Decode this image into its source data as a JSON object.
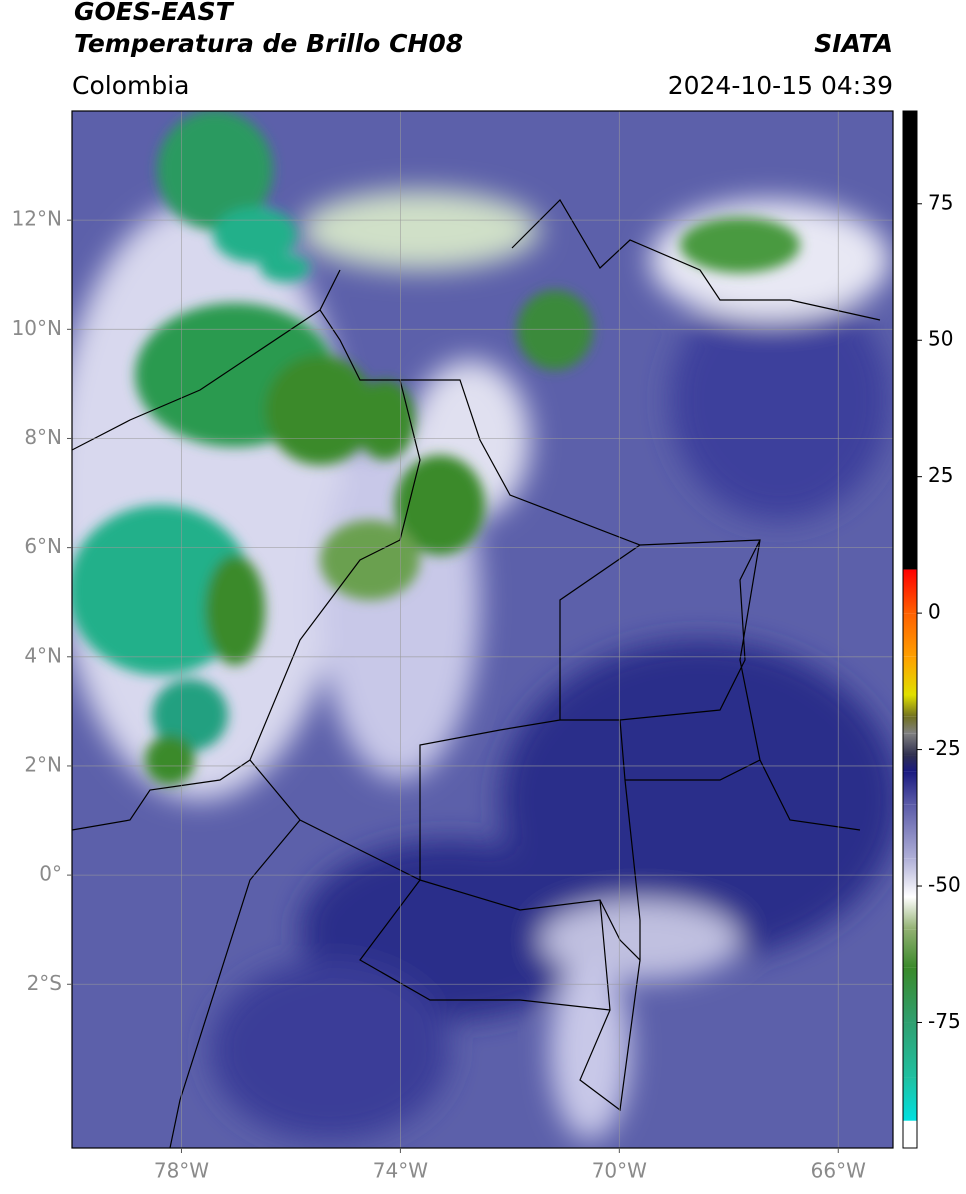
{
  "header": {
    "title": "GOES-EAST",
    "subtitle": "Temperatura de Brillo CH08",
    "source": "SIATA",
    "region": "Colombia",
    "timestamp": "2024-10-15 04:39"
  },
  "map": {
    "xlim": [
      -80,
      -65
    ],
    "ylim": [
      -5,
      14
    ],
    "xticks": [
      {
        "value": -78,
        "label": "78°W"
      },
      {
        "value": -74,
        "label": "74°W"
      },
      {
        "value": -70,
        "label": "70°W"
      },
      {
        "value": -66,
        "label": "66°W"
      }
    ],
    "yticks": [
      {
        "value": 12,
        "label": "12°N"
      },
      {
        "value": 10,
        "label": "10°N"
      },
      {
        "value": 8,
        "label": "8°N"
      },
      {
        "value": 6,
        "label": "6°N"
      },
      {
        "value": 4,
        "label": "4°N"
      },
      {
        "value": 2,
        "label": "2°N"
      },
      {
        "value": 0,
        "label": "0°"
      },
      {
        "value": -2,
        "label": "2°S"
      }
    ],
    "grid": true
  },
  "colorbar": {
    "clim": [
      -98,
      92
    ],
    "ticks": [
      75,
      50,
      25,
      0,
      -25,
      -50,
      -75
    ],
    "colormap": [
      {
        "value": -98,
        "color": "#ffffff"
      },
      {
        "value": -93,
        "color": "#ffffff"
      },
      {
        "value": -93,
        "color": "#00e0e0"
      },
      {
        "value": -85,
        "color": "#20c0a0"
      },
      {
        "value": -75,
        "color": "#30a070"
      },
      {
        "value": -65,
        "color": "#3a8a2a"
      },
      {
        "value": -58,
        "color": "#90b070"
      },
      {
        "value": -52,
        "color": "#ffffff"
      },
      {
        "value": -45,
        "color": "#b0b0d8"
      },
      {
        "value": -35,
        "color": "#5a5aa8"
      },
      {
        "value": -29,
        "color": "#1a1a80"
      },
      {
        "value": -26,
        "color": "#303050"
      },
      {
        "value": -22,
        "color": "#808080"
      },
      {
        "value": -19,
        "color": "#707020"
      },
      {
        "value": -15,
        "color": "#e0e000"
      },
      {
        "value": -8,
        "color": "#ffa000"
      },
      {
        "value": 0,
        "color": "#ff6000"
      },
      {
        "value": 8,
        "color": "#ff0000"
      },
      {
        "value": 8,
        "color": "#000000"
      },
      {
        "value": 92,
        "color": "#000000"
      }
    ]
  }
}
